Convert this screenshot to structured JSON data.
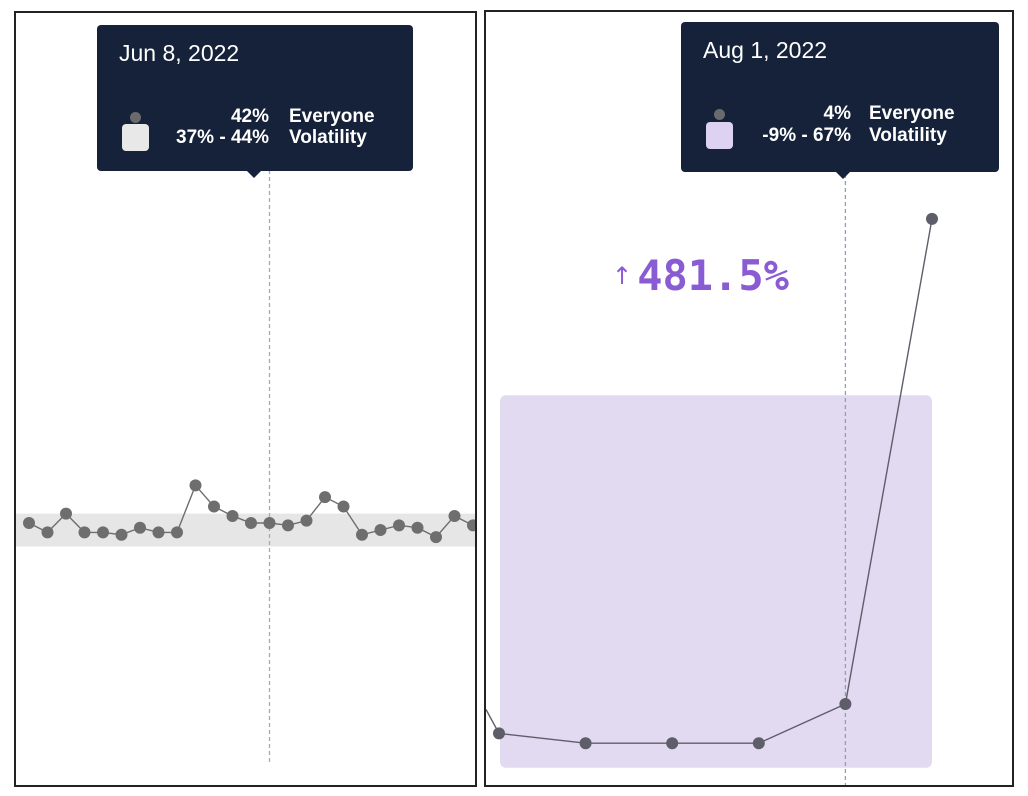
{
  "chart_data": [
    {
      "type": "line",
      "series": [
        {
          "name": "Everyone",
          "values": [
            42,
            40,
            44,
            40,
            40,
            39.5,
            41,
            40,
            40,
            50,
            45.5,
            43.5,
            42,
            42,
            41.5,
            42.5,
            47.5,
            45.5,
            39.5,
            40.5,
            41.5,
            41,
            39,
            43.5,
            41.5,
            42.5
          ]
        }
      ],
      "band": {
        "name": "Volatility",
        "low": 37,
        "high": 44
      },
      "tooltip": {
        "date": "Jun 8, 2022",
        "rows": [
          {
            "value": "42%",
            "label": "Everyone",
            "swatch": "dot"
          },
          {
            "value": "37% - 44%",
            "label": "Volatility",
            "swatch": "square"
          }
        ],
        "index": 13
      },
      "colors": {
        "line": "#6e6e6e",
        "band": "#e6e6e6",
        "swatch": "#e8e8e8",
        "tooltip_bg": "#15223a",
        "crosshair": "#9aaec4"
      }
    },
    {
      "type": "line",
      "series": [
        {
          "name": "Everyone",
          "values": [
            -2,
            -4,
            -4,
            -4,
            4,
            103
          ]
        }
      ],
      "band": {
        "name": "Volatility",
        "low": -9,
        "high": 67
      },
      "tooltip": {
        "date": "Aug 1, 2022",
        "rows": [
          {
            "value": "4%",
            "label": "Everyone",
            "swatch": "dot"
          },
          {
            "value": "-9% - 67%",
            "label": "Volatility",
            "swatch": "square"
          }
        ],
        "index": 4
      },
      "annotation": {
        "arrow": "↑",
        "text": "481.5%"
      },
      "colors": {
        "line": "#5e5e6a",
        "band": "#e2daf0",
        "swatch": "#ddd2f2",
        "accent": "#8a5cd3",
        "tooltip_bg": "#15223a",
        "crosshair": "#8aa0b8"
      }
    }
  ]
}
